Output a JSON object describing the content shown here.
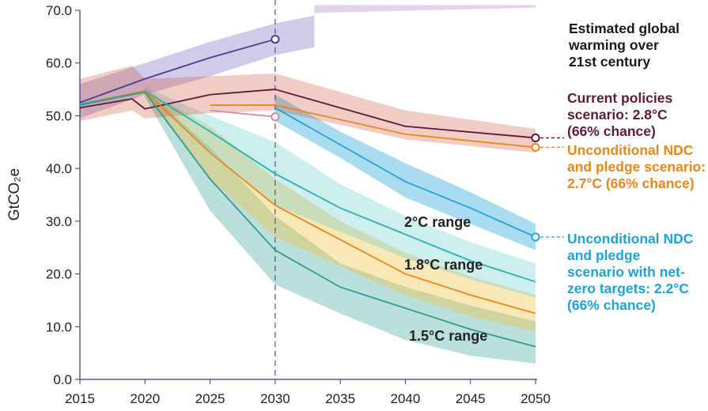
{
  "chart_data": {
    "type": "line",
    "ylabel": "GtCO₂e",
    "ylim": [
      0,
      70
    ],
    "xlim": [
      2015,
      2050
    ],
    "x_ticks": [
      "2015",
      "2020",
      "2025",
      "2030",
      "2035",
      "2040",
      "2045",
      "2050"
    ],
    "y_ticks": [
      "0.0",
      "10.0",
      "20.0",
      "30.0",
      "40.0",
      "50.0",
      "60.0",
      "70.0"
    ],
    "reference_line_x": 2030,
    "legend_title": "Estimated global warming over 21st century",
    "annotations": {
      "current_policies": "Current policies scenario: 2.8°C (66% chance)",
      "unconditional_ndc": "Unconditional NDC and pledge scenario: 2.7°C (66% chance)",
      "net_zero": "Unconditional NDC and pledge scenario with net-zero targets: 2.2°C (66% chance)"
    },
    "range_labels": {
      "deg2": "2°C range",
      "deg18": "1.8°C range",
      "deg15": "1.5°C range"
    },
    "series": [
      {
        "name": "Current policies scenario: 2.8°C (66% chance)",
        "color": "#5c1a3c",
        "x": [
          2015,
          2019,
          2020,
          2025,
          2030,
          2040,
          2050
        ],
        "y": [
          51.5,
          53.2,
          51.3,
          54.0,
          55.0,
          48.0,
          45.8
        ]
      },
      {
        "name": "Unconditional NDC and pledge scenario: 2.7°C (66% chance)",
        "color": "#e8871e",
        "x": [
          2025,
          2030,
          2040,
          2050
        ],
        "y": [
          52.0,
          52.0,
          46.5,
          44.0
        ]
      },
      {
        "name": "Unconditional NDC and pledge scenario with net-zero targets: 2.2°C (66% chance)",
        "color": "#1fa3d6",
        "x": [
          2030,
          2035,
          2040,
          2045,
          2050
        ],
        "y": [
          51.5,
          44.5,
          37.5,
          32.5,
          27.0
        ]
      },
      {
        "color": "#4a3d8c",
        "x": [
          2015,
          2020,
          2025,
          2030
        ],
        "y": [
          52.5,
          57.0,
          61.0,
          64.5
        ]
      },
      {
        "color": "#d9879f",
        "x": [
          2025,
          2030
        ],
        "y": [
          51.0,
          49.8
        ]
      },
      {
        "color": "#26b0b8",
        "x": [
          2015,
          2020,
          2025,
          2030,
          2035,
          2040,
          2045,
          2050
        ],
        "y": [
          52.2,
          54.7,
          47.0,
          39.0,
          32.5,
          27.5,
          22.5,
          18.5
        ]
      },
      {
        "color": "#e8871e",
        "x": [
          2015,
          2020,
          2025,
          2030,
          2035,
          2040,
          2045,
          2050
        ],
        "y": [
          52.0,
          54.7,
          43.0,
          33.0,
          26.5,
          20.0,
          16.0,
          12.5
        ]
      },
      {
        "color": "#2a9d8f",
        "x": [
          2015,
          2020,
          2025,
          2030,
          2035,
          2040,
          2045,
          2050
        ],
        "y": [
          52.0,
          54.5,
          38.0,
          24.5,
          17.5,
          13.5,
          9.5,
          6.2
        ]
      }
    ],
    "bands": [
      {
        "color": "#2a9d8f",
        "opacity": 0.32,
        "x": [
          2020,
          2025,
          2030,
          2035,
          2040,
          2045,
          2050
        ],
        "upper": [
          55.0,
          44.0,
          31.0,
          22.0,
          17.5,
          14.0,
          11.0
        ],
        "lower": [
          53.5,
          32.0,
          18.0,
          12.5,
          7.5,
          4.5,
          3.0
        ]
      },
      {
        "color": "#f0c040",
        "opacity": 0.38,
        "x": [
          2020,
          2025,
          2030,
          2035,
          2040,
          2045,
          2050
        ],
        "upper": [
          55.0,
          48.0,
          38.0,
          30.0,
          24.0,
          19.5,
          16.0
        ],
        "lower": [
          54.0,
          38.0,
          27.0,
          21.5,
          16.0,
          12.0,
          9.0
        ]
      },
      {
        "color": "#5cc6c6",
        "opacity": 0.3,
        "x": [
          2020,
          2025,
          2030,
          2035,
          2040,
          2045,
          2050
        ],
        "upper": [
          55.5,
          50.0,
          45.0,
          37.0,
          31.0,
          26.0,
          22.0
        ],
        "lower": [
          54.0,
          43.0,
          33.0,
          28.0,
          23.0,
          19.0,
          15.5
        ]
      },
      {
        "color": "#1fa3d6",
        "opacity": 0.38,
        "x": [
          2030,
          2035,
          2040,
          2045,
          2050
        ],
        "upper": [
          54.0,
          47.0,
          41.0,
          35.5,
          29.5
        ],
        "lower": [
          49.0,
          42.0,
          34.5,
          29.5,
          24.5
        ]
      },
      {
        "color": "#7a6bbf",
        "opacity": 0.35,
        "x": [
          2015,
          2020,
          2025,
          2030,
          2033
        ],
        "upper": [
          56.0,
          60.0,
          64.0,
          67.5,
          69.0
        ],
        "lower": [
          49.5,
          54.0,
          57.5,
          61.5,
          63.0
        ]
      },
      {
        "color": "#c94a2f",
        "opacity": 0.28,
        "x": [
          2015,
          2019,
          2020,
          2025,
          2030,
          2040,
          2050
        ],
        "upper": [
          57.0,
          59.5,
          57.0,
          57.5,
          58.0,
          51.0,
          47.5
        ],
        "lower": [
          49.0,
          51.0,
          49.5,
          50.5,
          51.0,
          45.5,
          43.0
        ]
      },
      {
        "color": "#c8a8d8",
        "opacity": 0.5,
        "x": [
          2033,
          2050
        ],
        "upper": [
          71.0,
          71.0
        ],
        "lower": [
          69.5,
          70.5
        ]
      }
    ],
    "end_markers": [
      {
        "x": 2030,
        "y": 64.5,
        "color": "#4a3d8c"
      },
      {
        "x": 2030,
        "y": 49.8,
        "color": "#d9879f"
      },
      {
        "x": 2050,
        "y": 45.8,
        "color": "#5c1a3c",
        "leader_to": "current_policies"
      },
      {
        "x": 2050,
        "y": 44.0,
        "color": "#e8871e",
        "leader_to": "unconditional_ndc"
      },
      {
        "x": 2050,
        "y": 27.0,
        "color": "#1fa3d6",
        "leader_to": "net_zero"
      }
    ]
  }
}
